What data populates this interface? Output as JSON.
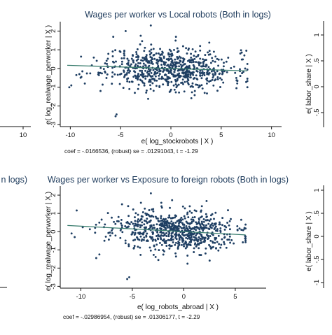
{
  "palette": {
    "marker": "#1f3f63",
    "fit_line": "#3a7d6e",
    "title": "#1e3b5c",
    "axis": "#111111"
  },
  "chart_data": [
    {
      "type": "scatter",
      "title": "Wages per worker vs Local robots (Both in logs)",
      "xlabel": "e( log_stockrobots | X )",
      "ylabel": "e( log_realwage_perworker | X )",
      "xlim": [
        -11,
        11
      ],
      "ylim": [
        -3.1,
        2.5
      ],
      "xticks": [
        "-10",
        "-5",
        "0",
        "5",
        "10"
      ],
      "yticks": [
        "-3",
        "-2",
        "-1",
        "0",
        "1",
        "2"
      ],
      "grid": false,
      "note": "coef = -.0166536, (robust) se = .01291043, t = -1.29",
      "fit": {
        "slope": -0.0166536,
        "x_range": [
          -10.3,
          7.6
        ]
      },
      "cloud": {
        "n": 720,
        "x_center": -0.2,
        "x_spread": 3.1,
        "x_min": -10.3,
        "x_max": 7.6,
        "y_spread": 0.55,
        "seed": 11
      },
      "points": [
        {
          "x": -9.9,
          "y": -0.9
        },
        {
          "x": -10.1,
          "y": -1.0
        },
        {
          "x": -9.4,
          "y": -0.35
        },
        {
          "x": -9.1,
          "y": -0.3
        },
        {
          "x": -8.8,
          "y": -0.15
        },
        {
          "x": -8.9,
          "y": -0.45
        },
        {
          "x": -5.5,
          "y": -2.55
        },
        {
          "x": -5.4,
          "y": -2.45
        },
        {
          "x": -4.5,
          "y": 2.0
        },
        {
          "x": -2.0,
          "y": 2.3
        },
        {
          "x": -3.0,
          "y": 1.75
        },
        {
          "x": 2.9,
          "y": 1.2
        },
        {
          "x": 6.9,
          "y": 0.8
        },
        {
          "x": 7.3,
          "y": 0.7
        },
        {
          "x": 7.5,
          "y": 0.95
        },
        {
          "x": 6.5,
          "y": -0.5
        },
        {
          "x": 5.2,
          "y": -0.75
        },
        {
          "x": -7.0,
          "y": -1.2
        }
      ]
    },
    {
      "type": "scatter",
      "title": "Wages per worker vs Exposure to foreign robots (Both in logs)",
      "xlabel": "e( log_robots_abroad | X )",
      "ylabel": "e( log_realwage_perworker | X )",
      "xlim": [
        -12,
        8
      ],
      "ylim": [
        -3.1,
        2.5
      ],
      "xticks": [
        "-10",
        "-5",
        "0",
        "5"
      ],
      "yticks": [
        "-3",
        "-2",
        "-1",
        "0",
        "1",
        "2"
      ],
      "grid": false,
      "note": "coef = -.02986954, (robust) se = .01306177, t = -2.29",
      "fit": {
        "slope": -0.02986954,
        "x_range": [
          -11.3,
          6.0
        ]
      },
      "cloud": {
        "n": 720,
        "x_center": -1.0,
        "x_spread": 3.0,
        "x_min": -11.3,
        "x_max": 6.0,
        "y_spread": 0.55,
        "seed": 23
      },
      "points": [
        {
          "x": -10.9,
          "y": -0.1
        },
        {
          "x": -10.6,
          "y": -0.3
        },
        {
          "x": -6.0,
          "y": 1.5
        },
        {
          "x": -5.4,
          "y": 1.4
        },
        {
          "x": -3.2,
          "y": 2.1
        },
        {
          "x": -5.5,
          "y": -2.6
        },
        {
          "x": -5.3,
          "y": -2.5
        },
        {
          "x": -8.5,
          "y": -1.45
        },
        {
          "x": -8.2,
          "y": -1.25
        },
        {
          "x": 5.2,
          "y": 0.3
        },
        {
          "x": 5.6,
          "y": 0.1
        },
        {
          "x": 5.9,
          "y": 0.2
        }
      ]
    }
  ],
  "partial_left": [
    {
      "xticks": [
        "10"
      ]
    },
    {
      "title_fragment": "n logs)"
    }
  ],
  "partial_right": [
    {
      "ylabel": "e( labor_share | X )",
      "yticks": [
        "1",
        ".5",
        "0",
        "-.5"
      ]
    },
    {
      "ylabel": "e( labor_share | X )",
      "yticks": [
        "1",
        ".5",
        "0",
        "-.5",
        "-1"
      ]
    }
  ]
}
